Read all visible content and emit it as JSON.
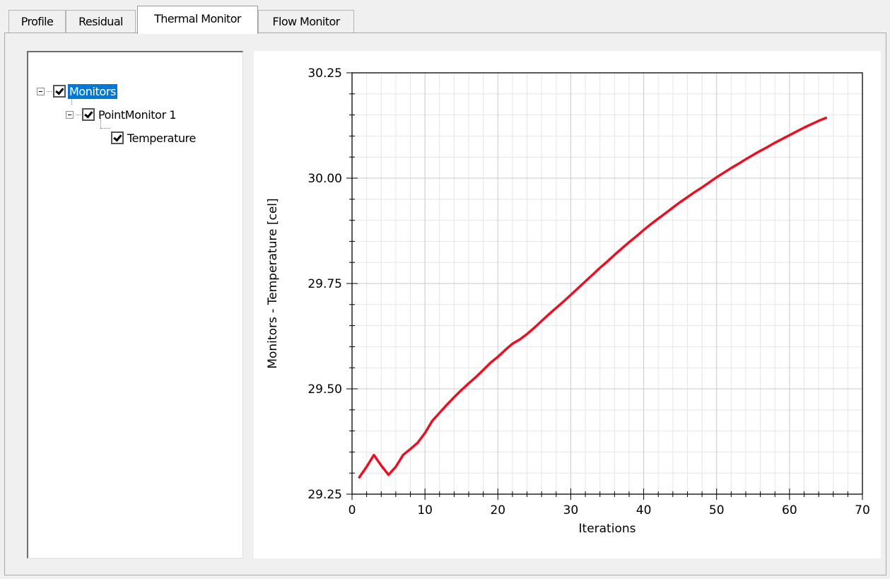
{
  "tabs": [
    {
      "label": "Profile",
      "active": false
    },
    {
      "label": "Residual",
      "active": false
    },
    {
      "label": "Thermal Monitor",
      "active": true
    },
    {
      "label": "Flow Monitor",
      "active": false
    }
  ],
  "tree": {
    "root": {
      "label": "Monitors",
      "checked": true,
      "expanded": true,
      "selected": true
    },
    "child": {
      "label": "PointMonitor 1",
      "checked": true,
      "expanded": true
    },
    "leaf": {
      "label": "Temperature",
      "checked": true
    }
  },
  "colors": {
    "series": "#e81123",
    "selection": "#0078d7"
  },
  "chart_data": {
    "type": "line",
    "xlabel": "Iterations",
    "ylabel": "Monitors - Temperature [cel]",
    "xlim": [
      0,
      70
    ],
    "ylim": [
      29.25,
      30.25
    ],
    "xticks": [
      "0",
      "10",
      "20",
      "30",
      "40",
      "50",
      "60",
      "70"
    ],
    "yticks": [
      "29.25",
      "29.50",
      "29.75",
      "30.00",
      "30.25"
    ],
    "grid": true,
    "series": [
      {
        "x": [
          1,
          2,
          3,
          4,
          5,
          6,
          7,
          8,
          9,
          10,
          11,
          12,
          13,
          14,
          15,
          16,
          17,
          18,
          19,
          20,
          21,
          22,
          23,
          24,
          25,
          26,
          27,
          28,
          29,
          30,
          31,
          32,
          33,
          34,
          35,
          36,
          37,
          38,
          39,
          40,
          41,
          42,
          43,
          44,
          45,
          46,
          47,
          48,
          49,
          50,
          51,
          52,
          53,
          54,
          55,
          56,
          57,
          58,
          59,
          60,
          61,
          62,
          63,
          64,
          65
        ],
        "y": [
          29.29,
          29.315,
          29.343,
          29.318,
          29.296,
          29.315,
          29.343,
          29.357,
          29.372,
          29.395,
          29.424,
          29.443,
          29.462,
          29.48,
          29.497,
          29.513,
          29.528,
          29.545,
          29.562,
          29.576,
          29.592,
          29.607,
          29.617,
          29.63,
          29.645,
          29.661,
          29.677,
          29.692,
          29.707,
          29.723,
          29.739,
          29.755,
          29.771,
          29.787,
          29.802,
          29.818,
          29.833,
          29.848,
          29.862,
          29.877,
          29.891,
          29.904,
          29.917,
          29.93,
          29.943,
          29.955,
          29.967,
          29.978,
          29.99,
          30.002,
          30.013,
          30.024,
          30.034,
          30.045,
          30.055,
          30.065,
          30.074,
          30.084,
          30.093,
          30.102,
          30.111,
          30.12,
          30.128,
          30.136,
          30.143
        ]
      }
    ]
  }
}
